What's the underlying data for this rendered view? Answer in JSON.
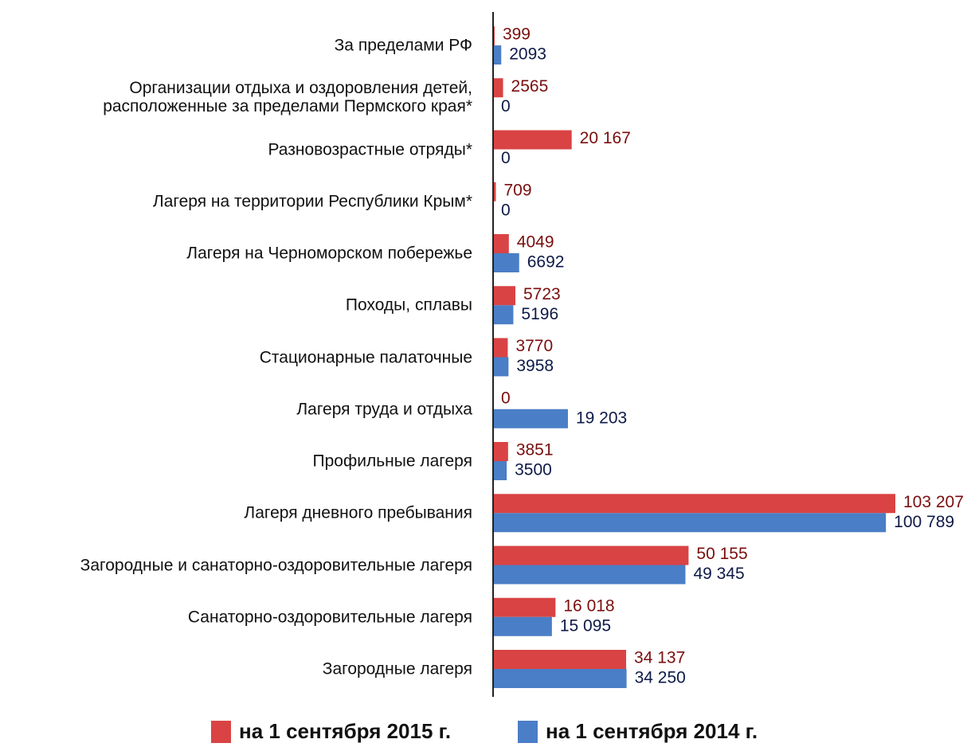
{
  "chart_data": {
    "type": "hbar",
    "categories": [
      "За пределами РФ",
      "Организации отдыха и оздоровления детей,\nрасположенные за пределами Пермского края*",
      "Разновозрастные отряды*",
      "Лагеря на территории Республики Крым*",
      "Лагеря на Черноморском побережье",
      "Походы, сплавы",
      "Стационарные палаточные",
      "Лагеря труда и отдыха",
      "Профильные лагеря",
      "Лагеря дневного пребывания",
      "Загородные и санаторно-оздоровительные лагеря",
      "Санаторно-оздоровительные лагеря",
      "Загородные лагеря"
    ],
    "series": [
      {
        "name": "на 1 сентября 2015 г.",
        "color": "#d94343",
        "label_color": "#7a0e0e",
        "values": [
          399,
          2565,
          20167,
          709,
          4049,
          5723,
          3770,
          0,
          3851,
          103207,
          50155,
          16018,
          34137
        ],
        "value_labels": [
          "399",
          "2565",
          "20 167",
          "709",
          "4049",
          "5723",
          "3770",
          "0",
          "3851",
          "103 207",
          "50 155",
          "16 018",
          "34 137"
        ]
      },
      {
        "name": "на 1 сентября 2014 г.",
        "color": "#4a7ec6",
        "label_color": "#0d1a48",
        "values": [
          2093,
          0,
          0,
          0,
          6692,
          5196,
          3958,
          19203,
          3500,
          100789,
          49345,
          15095,
          34250
        ],
        "value_labels": [
          "2093",
          "0",
          "0",
          "0",
          "6692",
          "5196",
          "3958",
          "19 203",
          "3500",
          "100 789",
          "49 345",
          "15 095",
          "34 250"
        ]
      }
    ],
    "legend": "bottom"
  }
}
